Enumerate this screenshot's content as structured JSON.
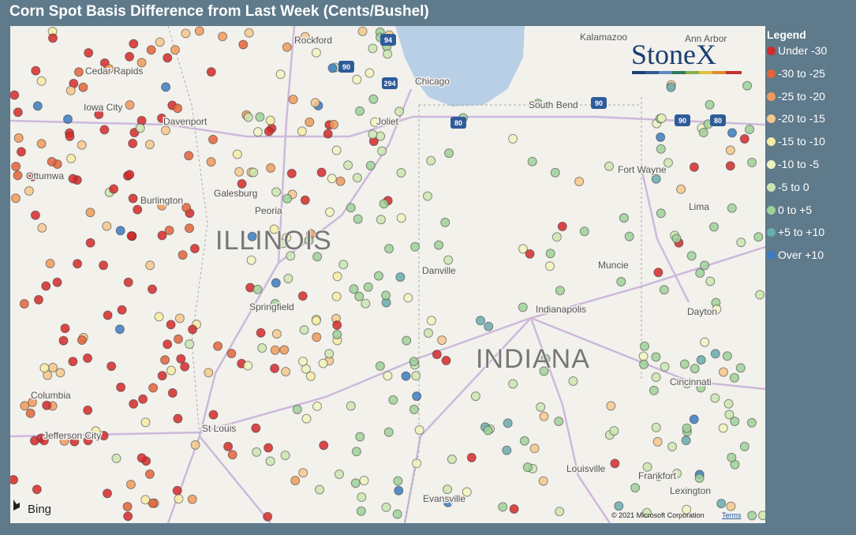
{
  "header": {
    "title": "Corn Spot Basis Difference from Last Week (Cents/Bushel)"
  },
  "legend": {
    "title": "Legend",
    "items": [
      {
        "label": "Under -30",
        "color": "#d42a2a"
      },
      {
        "label": "-30 to -25",
        "color": "#e2643c"
      },
      {
        "label": "-25 to -20",
        "color": "#ee9a5c"
      },
      {
        "label": "-20 to -15",
        "color": "#f4c88c"
      },
      {
        "label": "-15 to -10",
        "color": "#f6eca6"
      },
      {
        "label": "-10 to -5",
        "color": "#eef4bf"
      },
      {
        "label": "-5 to 0",
        "color": "#cbe6b2"
      },
      {
        "label": "0 to +5",
        "color": "#9dd199"
      },
      {
        "label": "+5 to +10",
        "color": "#68acae"
      },
      {
        "label": "Over +10",
        "color": "#3a7cc2"
      }
    ]
  },
  "map": {
    "places": [
      "Rockford",
      "Kalamazoo",
      "Ann Arbor",
      "Cedar Rapids",
      "Chicago",
      "Iowa City",
      "South Bend",
      "Davenport",
      "Joliet",
      "Ottumwa",
      "Galesburg",
      "Fort Wayne",
      "Burlington",
      "Peoria",
      "Lima",
      "Danville",
      "Muncie",
      "Springfield",
      "Indianapolis",
      "Dayton",
      "Cincinnati",
      "Columbia",
      "Jefferson City",
      "St Louis",
      "Louisville",
      "Frankfort",
      "Lexington",
      "Evansville"
    ],
    "states": [
      "ILLINOIS",
      "INDIANA"
    ],
    "highways": [
      "94",
      "90",
      "294",
      "80",
      "90",
      "90",
      "80"
    ],
    "logo": "StoneX",
    "provider": "Bing",
    "copyright": "© 2021 Microsoft Corporation",
    "terms": "Terms"
  }
}
